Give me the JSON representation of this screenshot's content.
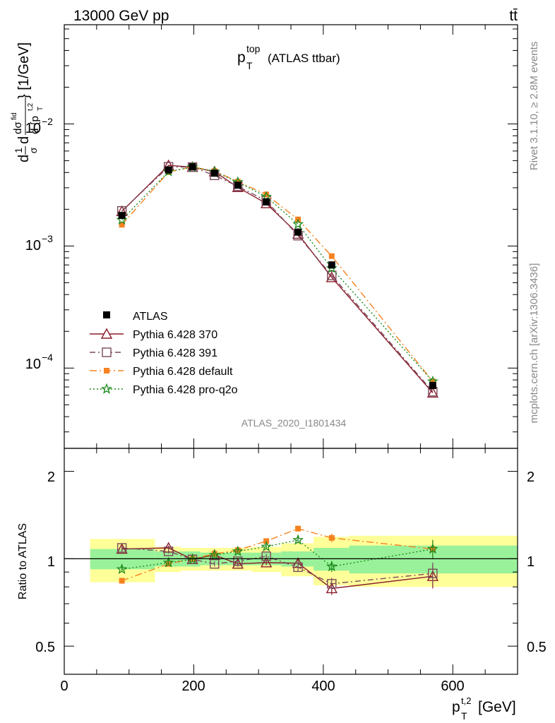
{
  "header": {
    "energy_label": "13000 GeV pp",
    "process_label": "tt̄"
  },
  "title": {
    "main": "p",
    "sub": "T",
    "sup": "top",
    "rest": "(ATLAS ttbar)"
  },
  "watermark": "ATLAS_2020_I1801434",
  "side_labels": {
    "rivet": "Rivet 3.1.10, ≥ 2.8M events",
    "mcplots": "mcplots.cern.ch [arXiv:1306.3436]"
  },
  "axes": {
    "xlabel_main": "p",
    "xlabel_sub": "T",
    "xlabel_sup": "t,2",
    "xlabel_unit": "[GeV]",
    "ylabel_prefix": "d",
    "ylabel_frac1_num": "1",
    "ylabel_frac1_den": "σ",
    "ylabel_d": "d",
    "ylabel_frac2_num": "dσ",
    "ylabel_frac2_num_sup": "fid",
    "ylabel_frac2_den": "d {p",
    "ylabel_frac2_den_sub": "T",
    "ylabel_frac2_den_sup": "t,2",
    "ylabel_close": "} [1/GeV]",
    "ratio_ylabel": "Ratio to ATLAS"
  },
  "ticks": {
    "x": [
      "0",
      "200",
      "400",
      "600"
    ],
    "main_y": [
      {
        "base": "10",
        "exp": "−2"
      },
      {
        "base": "10",
        "exp": "−3"
      },
      {
        "base": "10",
        "exp": "−4"
      }
    ],
    "ratio_y": [
      "2",
      "1",
      "0.5"
    ]
  },
  "chart_data": {
    "type": "line",
    "x_scale": "linear",
    "y_scale": "log",
    "xlim": [
      0,
      700
    ],
    "ylim": [
      2.2e-05,
      0.065
    ],
    "ratio_ylim": [
      0.4,
      2.4
    ],
    "ratio_scale": "log",
    "legend_position": "bottom-left",
    "bins": [
      {
        "lo": 40,
        "hi": 140
      },
      {
        "lo": 140,
        "hi": 180
      },
      {
        "lo": 180,
        "hi": 210
      },
      {
        "lo": 210,
        "hi": 250
      },
      {
        "lo": 250,
        "hi": 290
      },
      {
        "lo": 290,
        "hi": 335
      },
      {
        "lo": 335,
        "hi": 385
      },
      {
        "lo": 385,
        "hi": 440
      },
      {
        "lo": 440,
        "hi": 700
      }
    ],
    "x": [
      89,
      161,
      198,
      232,
      268,
      312,
      361,
      413,
      569
    ],
    "reference": {
      "name": "ATLAS",
      "color": "#000000",
      "marker": "square",
      "values": [
        0.00178,
        0.0042,
        0.00445,
        0.00395,
        0.00315,
        0.0023,
        0.0013,
        0.0007,
        7.2e-05
      ],
      "band_inner": [
        0.08,
        0.06,
        0.06,
        0.05,
        0.05,
        0.05,
        0.06,
        0.09,
        0.11
      ],
      "band_outer": [
        0.17,
        0.1,
        0.09,
        0.09,
        0.09,
        0.1,
        0.13,
        0.19,
        0.2
      ]
    },
    "series": [
      {
        "name": "Pythia 6.428 370",
        "color": "#8b1c2b",
        "marker": "triangle-open",
        "dash": "",
        "ratio": [
          1.08,
          1.09,
          0.995,
          1.03,
          0.96,
          0.97,
          0.965,
          0.79,
          0.87
        ],
        "ratio_err": [
          0.02,
          0.02,
          0.02,
          0.02,
          0.02,
          0.02,
          0.03,
          0.04,
          0.08
        ]
      },
      {
        "name": "Pythia 6.428 391",
        "color": "#7a4a5c",
        "marker": "square-open",
        "dash": "8,4,2,4",
        "ratio": [
          1.09,
          1.06,
          0.995,
          0.96,
          0.98,
          1.02,
          0.935,
          0.82,
          0.89
        ],
        "ratio_err": [
          0.02,
          0.02,
          0.02,
          0.02,
          0.02,
          0.02,
          0.03,
          0.04,
          0.08
        ]
      },
      {
        "name": "Pythia 6.428 default",
        "color": "#f58220",
        "marker": "square-filled",
        "dash": "10,4,2,4",
        "ratio": [
          0.84,
          0.96,
          1.0,
          1.04,
          1.07,
          1.15,
          1.27,
          1.18,
          1.08
        ],
        "ratio_err": [
          0.02,
          0.02,
          0.02,
          0.02,
          0.02,
          0.02,
          0.03,
          0.04,
          0.08
        ]
      },
      {
        "name": "Pythia 6.428 pro-q2o",
        "color": "#1e8c1e",
        "marker": "star",
        "dash": "2,3",
        "ratio": [
          0.92,
          0.97,
          0.995,
          1.03,
          1.06,
          1.1,
          1.16,
          0.94,
          1.08
        ],
        "ratio_err": [
          0.02,
          0.02,
          0.02,
          0.02,
          0.02,
          0.02,
          0.03,
          0.04,
          0.08
        ]
      }
    ]
  }
}
